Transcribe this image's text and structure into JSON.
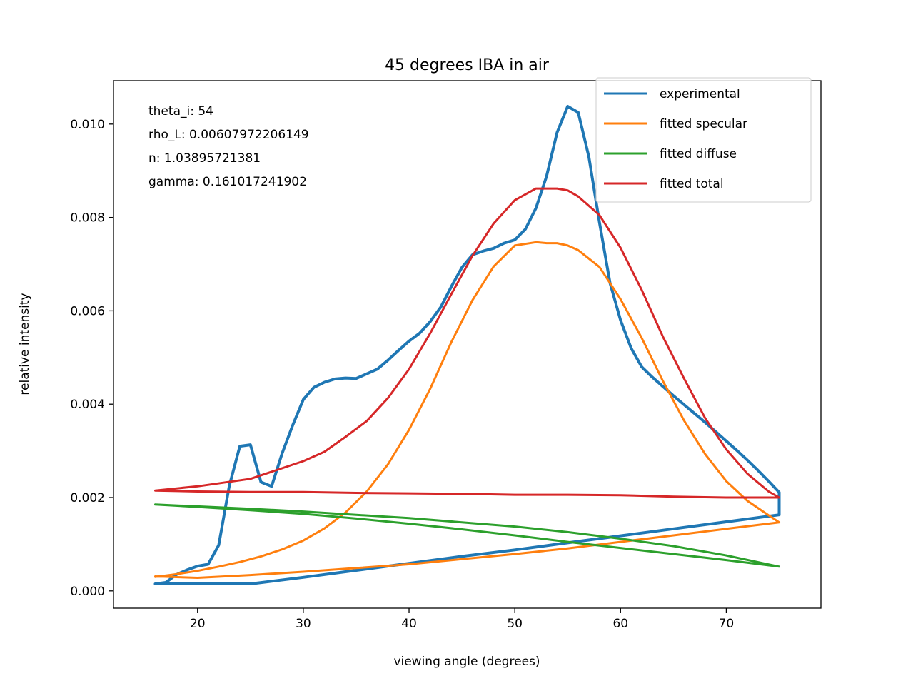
{
  "chart_data": {
    "type": "line",
    "title": "45 degrees IBA in air",
    "xlabel": "viewing angle (degrees)",
    "ylabel": "relative intensity",
    "xlim": [
      12.05,
      78.95
    ],
    "ylim": [
      -0.00037,
      0.01093
    ],
    "xticks": [
      20,
      30,
      40,
      50,
      60,
      70
    ],
    "yticks": [
      0.0,
      0.002,
      0.004,
      0.006,
      0.008,
      0.01
    ],
    "ytick_labels": [
      "0.000",
      "0.002",
      "0.004",
      "0.006",
      "0.008",
      "0.010"
    ],
    "grid": false,
    "legend_position": "upper right",
    "annotations": [
      "theta_i: 54",
      "rho_L: 0.00607972206149",
      "n: 1.03895721381",
      "gamma: 0.161017241902"
    ],
    "series": [
      {
        "name": "experimental",
        "color": "#1f77b4",
        "width": 4,
        "x": [
          16,
          17,
          18,
          19,
          20,
          21,
          22,
          23,
          24,
          25,
          26,
          27,
          28,
          29,
          30,
          31,
          32,
          33,
          34,
          35,
          36,
          37,
          38,
          39,
          40,
          41,
          42,
          43,
          44,
          45,
          46,
          47,
          48,
          49,
          50,
          51,
          52,
          53,
          54,
          55,
          56,
          57,
          58,
          59,
          60,
          61,
          62,
          63,
          64,
          65,
          66,
          67,
          68,
          69,
          70,
          71,
          72,
          73,
          74,
          75,
          75,
          70,
          65,
          60,
          55,
          50,
          45,
          40,
          35,
          30,
          25,
          20,
          16
        ],
        "y": [
          0.00015,
          0.00018,
          0.00035,
          0.00045,
          0.00053,
          0.00057,
          0.00098,
          0.00225,
          0.0031,
          0.00313,
          0.00233,
          0.00224,
          0.00295,
          0.00355,
          0.0041,
          0.00436,
          0.00447,
          0.00454,
          0.00456,
          0.00455,
          0.00465,
          0.00475,
          0.00494,
          0.00515,
          0.00535,
          0.00552,
          0.00577,
          0.00608,
          0.00652,
          0.00693,
          0.0072,
          0.00728,
          0.00734,
          0.00745,
          0.00752,
          0.00775,
          0.0082,
          0.00888,
          0.00982,
          0.01038,
          0.01025,
          0.0093,
          0.0079,
          0.0066,
          0.0058,
          0.0052,
          0.0048,
          0.00458,
          0.00438,
          0.00418,
          0.00399,
          0.0038,
          0.00361,
          0.00341,
          0.00321,
          0.00301,
          0.0028,
          0.00258,
          0.00235,
          0.00211,
          0.00163,
          0.00148,
          0.00133,
          0.00118,
          0.00103,
          0.00088,
          0.00074,
          0.00059,
          0.00044,
          0.00029,
          0.00015,
          0.00015,
          0.00015
        ]
      },
      {
        "name": "fitted specular",
        "color": "#ff7f0e",
        "width": 3,
        "x": [
          16,
          18,
          20,
          22,
          24,
          26,
          28,
          30,
          32,
          34,
          36,
          38,
          40,
          42,
          44,
          46,
          48,
          50,
          52,
          53,
          54,
          55,
          56,
          58,
          60,
          62,
          64,
          66,
          68,
          70,
          72,
          74,
          75,
          70,
          65,
          60,
          55,
          50,
          45,
          40,
          35,
          30,
          25,
          20,
          16
        ],
        "y": [
          0.0003,
          0.00036,
          0.00043,
          0.00052,
          0.00062,
          0.00074,
          0.00089,
          0.00108,
          0.00134,
          0.00168,
          0.00213,
          0.00271,
          0.00345,
          0.00433,
          0.00533,
          0.00623,
          0.00695,
          0.0074,
          0.00747,
          0.00745,
          0.00745,
          0.0074,
          0.0073,
          0.00694,
          0.00625,
          0.00542,
          0.0045,
          0.00365,
          0.00293,
          0.00235,
          0.00193,
          0.00162,
          0.00147,
          0.00133,
          0.00119,
          0.00105,
          0.00091,
          0.00079,
          0.00068,
          0.00057,
          0.00049,
          0.00041,
          0.00034,
          0.00028,
          0.00031
        ]
      },
      {
        "name": "fitted diffuse",
        "color": "#2ca02c",
        "width": 3,
        "x": [
          16,
          20,
          25,
          30,
          35,
          40,
          45,
          50,
          55,
          60,
          65,
          70,
          75,
          70,
          65,
          60,
          55,
          50,
          45,
          40,
          35,
          30,
          25,
          20,
          16
        ],
        "y": [
          0.00185,
          0.00181,
          0.00176,
          0.0017,
          0.00163,
          0.00156,
          0.00147,
          0.00138,
          0.00126,
          0.00112,
          0.00096,
          0.00076,
          0.00052,
          0.00066,
          0.00079,
          0.00092,
          0.00105,
          0.00119,
          0.00132,
          0.00144,
          0.00155,
          0.00165,
          0.00173,
          0.0018,
          0.00185
        ]
      },
      {
        "name": "fitted total",
        "color": "#d62728",
        "width": 3,
        "x": [
          16,
          20,
          25,
          30,
          32,
          34,
          36,
          38,
          40,
          42,
          44,
          46,
          48,
          50,
          52,
          53,
          54,
          55,
          56,
          58,
          60,
          62,
          64,
          66,
          68,
          70,
          72,
          74,
          75,
          70,
          65,
          60,
          55,
          50,
          45,
          40,
          35,
          30,
          25,
          20,
          16
        ],
        "y": [
          0.00215,
          0.00224,
          0.0024,
          0.00278,
          0.00298,
          0.0033,
          0.00364,
          0.00413,
          0.00475,
          0.00552,
          0.00636,
          0.00718,
          0.00787,
          0.00837,
          0.00862,
          0.00862,
          0.00862,
          0.00858,
          0.00845,
          0.00805,
          0.00735,
          0.00645,
          0.00545,
          0.00455,
          0.0037,
          0.00303,
          0.00251,
          0.00213,
          0.002,
          0.002,
          0.00202,
          0.00205,
          0.00206,
          0.00206,
          0.00208,
          0.00209,
          0.0021,
          0.00212,
          0.00212,
          0.00213,
          0.00215
        ]
      }
    ]
  }
}
